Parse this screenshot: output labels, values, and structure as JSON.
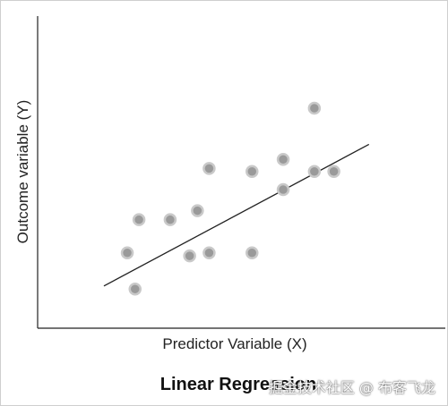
{
  "chart_data": {
    "type": "scatter",
    "title": "Linear Regression",
    "xlabel": "Predictor Variable (X)",
    "ylabel": "Outcome variable (Y)",
    "xlim": [
      0,
      10
    ],
    "ylim": [
      0,
      10
    ],
    "grid": false,
    "x": [
      2.3,
      2.5,
      2.6,
      3.4,
      3.9,
      4.1,
      4.4,
      4.4,
      5.5,
      5.5,
      6.3,
      6.3,
      7.1,
      7.1,
      7.6
    ],
    "y": [
      2.5,
      1.3,
      3.6,
      3.6,
      2.4,
      3.9,
      5.3,
      2.5,
      5.2,
      2.5,
      4.6,
      5.6,
      5.2,
      7.3,
      5.2
    ],
    "fit_line": {
      "x": [
        1.7,
        8.5
      ],
      "y": [
        1.4,
        6.1
      ]
    }
  },
  "watermark": "掘金技术社区 @ 布客飞龙"
}
